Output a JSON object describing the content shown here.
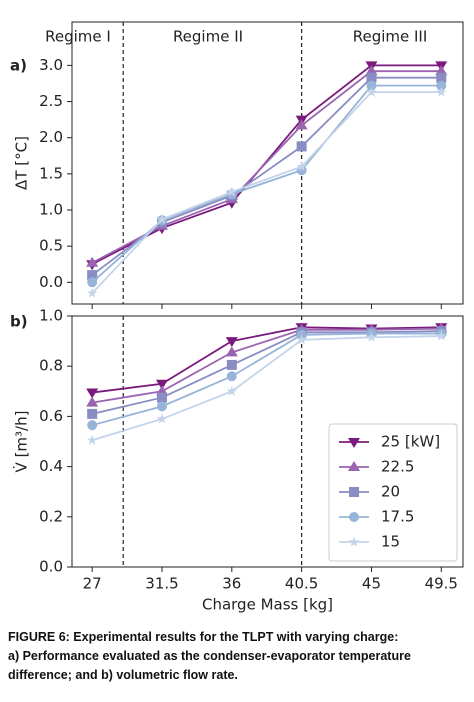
{
  "chart_data": [
    {
      "type": "line",
      "panel_label": "a)",
      "ylabel": "ΔT [°C]",
      "annotations": [
        "Regime I",
        "Regime II",
        "Regime III"
      ],
      "x": [
        27,
        31.5,
        36,
        40.5,
        45,
        49.5
      ],
      "xlim": [
        25.7,
        50.9
      ],
      "ylim": [
        -0.3,
        3.6
      ],
      "yticks": [
        {
          "value": 0,
          "label": "0.0"
        },
        0.5,
        {
          "value": 1,
          "label": "1.0"
        },
        1.5,
        {
          "value": 2,
          "label": "2.0"
        },
        2.5,
        {
          "value": 3,
          "label": "3.0"
        }
      ],
      "vlines": [
        29,
        40.5
      ],
      "series": [
        {
          "color": "#7b1a7e",
          "marker": "tri-down",
          "values": [
            0.25,
            0.75,
            1.1,
            2.25,
            3.0,
            3.0
          ]
        },
        {
          "color": "#9a64b0",
          "marker": "tri-up",
          "values": [
            0.27,
            0.78,
            1.15,
            2.17,
            2.92,
            2.92
          ]
        },
        {
          "color": "#8a8cc4",
          "marker": "square",
          "values": [
            0.1,
            0.83,
            1.2,
            1.88,
            2.83,
            2.83
          ]
        },
        {
          "color": "#97b4d8",
          "marker": "circle",
          "values": [
            0.0,
            0.86,
            1.22,
            1.55,
            2.72,
            2.72
          ]
        },
        {
          "color": "#c3d4ea",
          "marker": "star",
          "values": [
            -0.15,
            0.87,
            1.25,
            1.6,
            2.63,
            2.63
          ]
        }
      ]
    },
    {
      "type": "line",
      "panel_label": "b)",
      "ylabel": "V̇ [m³/h]",
      "xlabel": "Charge Mass [kg]",
      "x": [
        27,
        31.5,
        36,
        40.5,
        45,
        49.5
      ],
      "xlim": [
        25.7,
        50.9
      ],
      "ylim": [
        0,
        1
      ],
      "xticks": [
        27,
        31.5,
        36,
        40.5,
        45,
        49.5
      ],
      "yticks": [
        {
          "value": 0,
          "label": "0.0"
        },
        0.2,
        0.4,
        0.6,
        0.8,
        {
          "value": 1,
          "label": "1.0"
        }
      ],
      "vlines": [
        29,
        40.5
      ],
      "legend": "lower right",
      "series": [
        {
          "name": "25 [kW]",
          "color": "#7b1a7e",
          "marker": "tri-down",
          "values": [
            0.695,
            0.73,
            0.9,
            0.955,
            0.95,
            0.955
          ]
        },
        {
          "name": "22.5",
          "color": "#9a64b0",
          "marker": "tri-up",
          "values": [
            0.655,
            0.7,
            0.855,
            0.945,
            0.945,
            0.95
          ]
        },
        {
          "name": "20",
          "color": "#8a8cc4",
          "marker": "square",
          "values": [
            0.61,
            0.675,
            0.805,
            0.935,
            0.935,
            0.94
          ]
        },
        {
          "name": "17.5",
          "color": "#97b4d8",
          "marker": "circle",
          "values": [
            0.565,
            0.64,
            0.76,
            0.925,
            0.93,
            0.93
          ]
        },
        {
          "name": "15",
          "color": "#c3d4ea",
          "marker": "star",
          "values": [
            0.505,
            0.59,
            0.7,
            0.905,
            0.915,
            0.92
          ]
        }
      ]
    }
  ],
  "caption": [
    "FIGURE 6:  Experimental results for the TLPT with varying charge:",
    "a) Performance evaluated as the condenser-evaporator temperature",
    "difference; and b) volumetric flow rate."
  ]
}
